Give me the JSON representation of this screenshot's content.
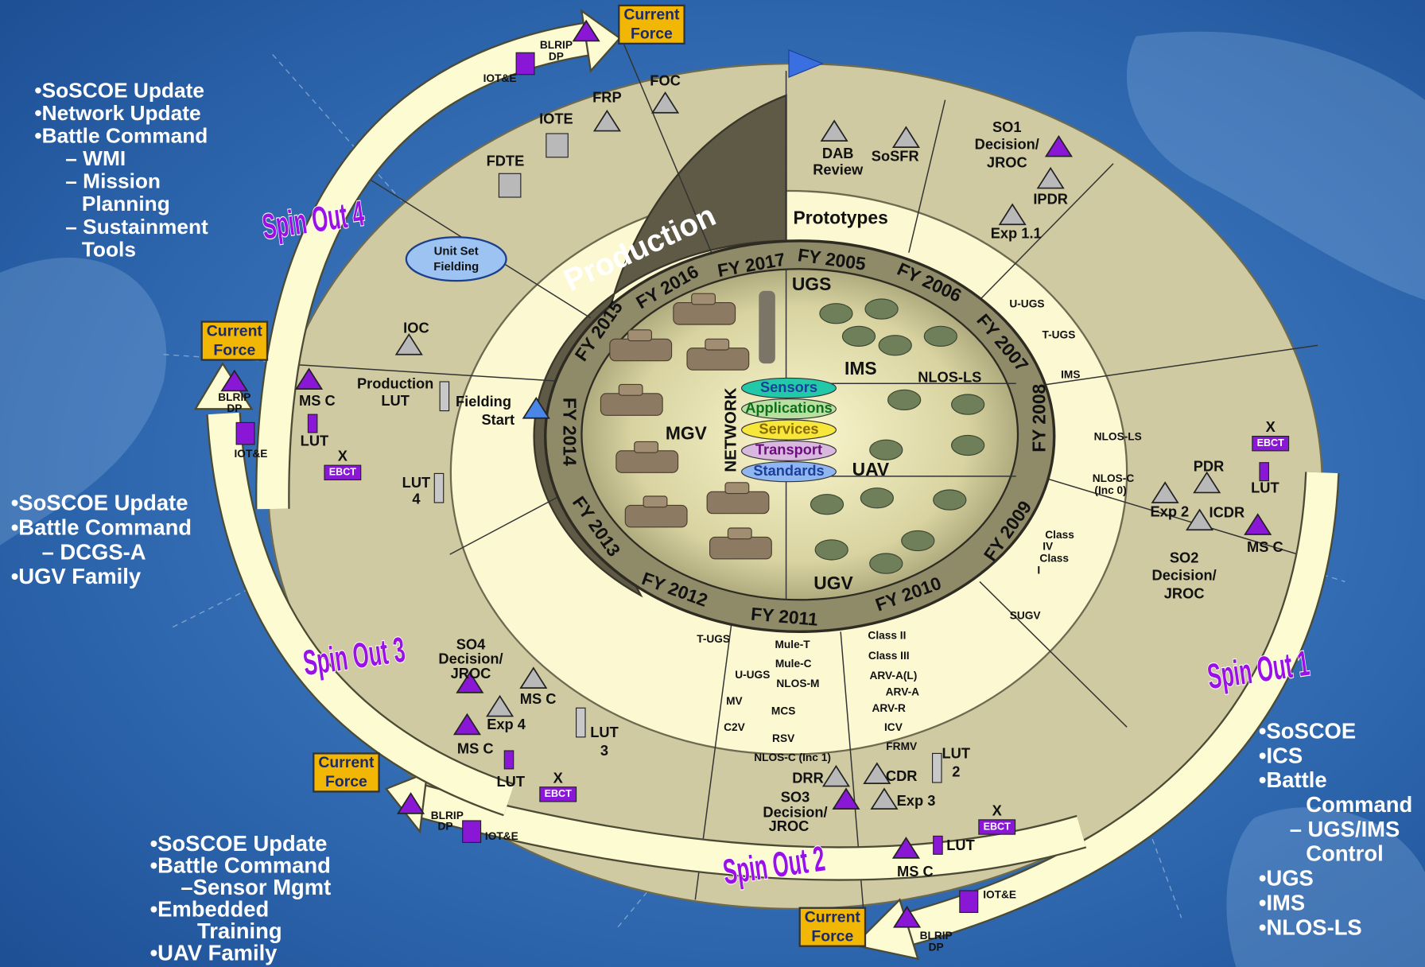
{
  "side_notes": [
    [
      "•SoSCOE Update",
      "•Network Update",
      "•Battle Command",
      "– WMI",
      "– Mission",
      "Planning",
      "– Sustainment",
      "Tools"
    ],
    [
      "•SoSCOE Update",
      "•Battle Command",
      "– DCGS-A",
      "•UGV Family"
    ],
    [
      "•SoSCOE Update",
      "•Battle Command",
      "–Sensor Mgmt",
      "•Embedded",
      "Training",
      "•UAV Family"
    ],
    [
      "•SoSCOE",
      "•ICS",
      "•Battle",
      "Command",
      "– UGS/IMS",
      "Control",
      "•UGS",
      "•IMS",
      "•NLOS-LS"
    ]
  ],
  "spin_outs": [
    "Spin Out 1",
    "Spin Out 2",
    "Spin Out 3",
    "Spin Out 4"
  ],
  "current_force": [
    [
      "Current",
      "Force"
    ],
    [
      "Current",
      "Force"
    ],
    [
      "Current",
      "Force"
    ],
    [
      "Current",
      "Force"
    ]
  ],
  "phases": {
    "production": "Production",
    "prototypes": "Prototypes"
  },
  "fiscal_years": [
    "FY 2005",
    "FY 2006",
    "FY 2007",
    "FY 2008",
    "FY 2009",
    "FY 2010",
    "FY 2011",
    "FY 2012",
    "FY 2013",
    "FY 2014",
    "FY 2015",
    "FY 2016",
    "FY 2017"
  ],
  "core": {
    "network": "NETWORK",
    "layers": [
      "Sensors",
      "Applications",
      "Services",
      "Transport",
      "Standards"
    ],
    "systems": [
      "UGS",
      "IMS",
      "NLOS-LS",
      "MGV",
      "UAV",
      "UGV"
    ]
  },
  "milestone_labels": [
    "BLRIP",
    "DP",
    "IOT&E",
    "FOC",
    "FRP",
    "IOTE",
    "FDTE",
    "Unit Set",
    "Fielding",
    "IOC",
    "MS C",
    "LUT",
    "IOT&E",
    "BLRIP",
    "DP",
    "Production",
    "LUT",
    "Fielding",
    "Start",
    "LUT",
    "4",
    "DAB",
    "Review",
    "SoSFR",
    "SO1",
    "Decision/",
    "JROC",
    "IPDR",
    "Exp 1.1",
    "U-UGS",
    "T-UGS",
    "IMS",
    "NLOS-LS",
    "NLOS-C",
    "(Inc 0)",
    "PDR",
    "LUT",
    "Exp 2",
    "ICDR",
    "MS C",
    "Class",
    "IV",
    "Class",
    "I",
    "SO2",
    "Decision/",
    "JROC",
    "SUGV",
    "T-UGS",
    "U-UGS",
    "Mule-T",
    "Mule-C",
    "NLOS-M",
    "MV",
    "MCS",
    "C2V",
    "RSV",
    "NLOS-C (Inc 1)",
    "Class II",
    "Class III",
    "ARV-A(L)",
    "ARV-A",
    "ARV-R",
    "ICV",
    "FRMV",
    "LUT",
    "2",
    "DRR",
    "CDR",
    "Exp 3",
    "SO3",
    "Decision/",
    "JROC",
    "LUT",
    "MS C",
    "IOT&E",
    "BLRIP",
    "DP",
    "SO4",
    "Decision/",
    "JROC",
    "MS C",
    "Exp 4",
    "MS C",
    "LUT",
    "3",
    "LUT",
    "BLRIP",
    "DP",
    "IOT&E"
  ],
  "ebct": [
    {
      "mark": "X",
      "label": "EBCT"
    },
    {
      "mark": "X",
      "label": "EBCT"
    },
    {
      "mark": "X",
      "label": "EBCT"
    },
    {
      "mark": "X",
      "label": "EBCT"
    }
  ]
}
